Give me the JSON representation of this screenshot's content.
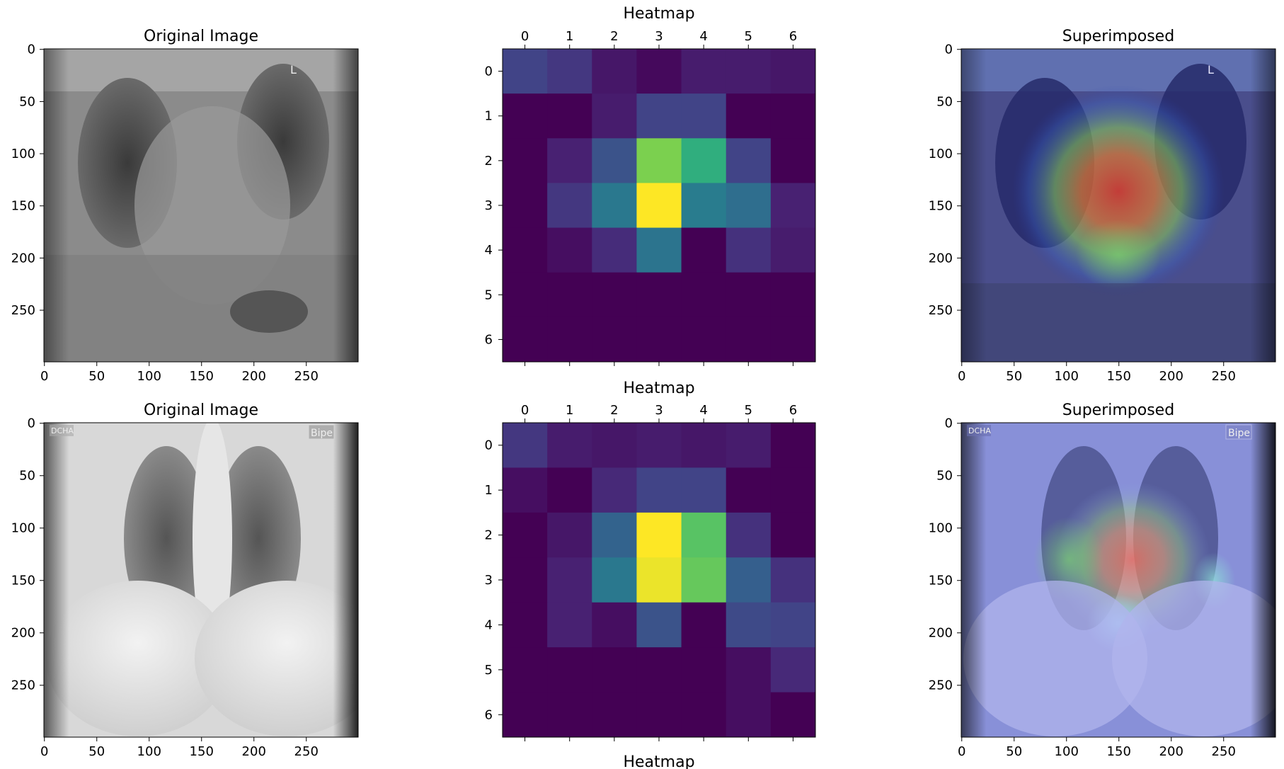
{
  "figure": {
    "row1": {
      "left_title": "Original Image",
      "middle_title": "Heatmap",
      "right_title": "Superimposed"
    },
    "row2": {
      "left_title": "Original Image",
      "middle_title": "Heatmap",
      "right_title": "Superimposed"
    },
    "row3": {
      "middle_title": "Heatmap"
    },
    "xray_overlay_labels": {
      "row1_marker": "L",
      "row2_left_marker": "DCHA",
      "row2_right_marker": "Bipe"
    }
  },
  "chart_data": [
    {
      "type": "heatmap",
      "title": "Heatmap",
      "x_ticks": [
        0,
        1,
        2,
        3,
        4,
        5,
        6
      ],
      "y_ticks": [
        0,
        1,
        2,
        3,
        4,
        5,
        6
      ],
      "colormap": "viridis",
      "values": [
        [
          0.25,
          0.2,
          0.08,
          0.03,
          0.1,
          0.1,
          0.08
        ],
        [
          0.0,
          0.0,
          0.1,
          0.25,
          0.25,
          0.0,
          0.0
        ],
        [
          0.0,
          0.12,
          0.32,
          0.85,
          0.72,
          0.25,
          0.0
        ],
        [
          0.0,
          0.2,
          0.5,
          1.0,
          0.52,
          0.45,
          0.12
        ],
        [
          0.0,
          0.05,
          0.16,
          0.48,
          0.0,
          0.18,
          0.1
        ],
        [
          0.0,
          0.0,
          0.0,
          0.0,
          0.0,
          0.0,
          0.0
        ],
        [
          0.0,
          0.0,
          0.0,
          0.0,
          0.0,
          0.0,
          0.0
        ]
      ]
    },
    {
      "type": "heatmap",
      "title": "Heatmap",
      "x_ticks": [
        0,
        1,
        2,
        3,
        4,
        5,
        6
      ],
      "y_ticks": [
        0,
        1,
        2,
        3,
        4,
        5,
        6
      ],
      "colormap": "viridis",
      "values": [
        [
          0.2,
          0.1,
          0.08,
          0.1,
          0.08,
          0.1,
          0.0
        ],
        [
          0.05,
          0.0,
          0.15,
          0.25,
          0.25,
          0.0,
          0.0
        ],
        [
          0.0,
          0.08,
          0.4,
          1.0,
          0.8,
          0.18,
          0.0
        ],
        [
          0.0,
          0.12,
          0.5,
          0.98,
          0.82,
          0.38,
          0.18
        ],
        [
          0.0,
          0.12,
          0.05,
          0.32,
          0.0,
          0.28,
          0.25
        ],
        [
          0.0,
          0.0,
          0.0,
          0.0,
          0.0,
          0.05,
          0.15
        ],
        [
          0.0,
          0.0,
          0.0,
          0.0,
          0.0,
          0.05,
          0.0
        ]
      ]
    },
    {
      "type": "image",
      "title": "Original Image",
      "x_ticks": [
        0,
        50,
        100,
        150,
        200,
        250
      ],
      "y_ticks": [
        0,
        50,
        100,
        150,
        200,
        250
      ],
      "xlim": [
        0,
        299
      ],
      "ylim": [
        299,
        0
      ]
    },
    {
      "type": "image",
      "title": "Superimposed",
      "x_ticks": [
        0,
        50,
        100,
        150,
        200,
        250
      ],
      "y_ticks": [
        0,
        50,
        100,
        150,
        200,
        250
      ],
      "xlim": [
        0,
        299
      ],
      "ylim": [
        299,
        0
      ]
    }
  ]
}
